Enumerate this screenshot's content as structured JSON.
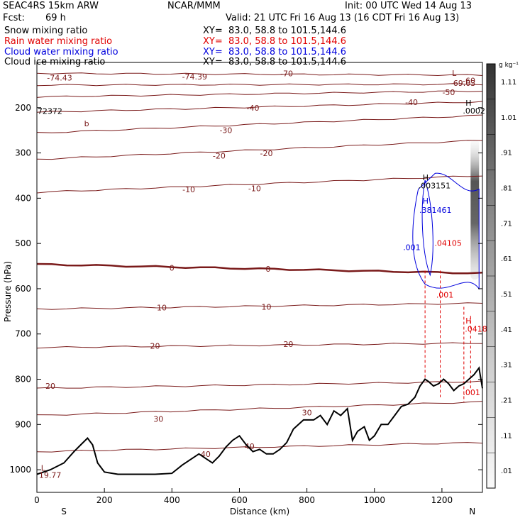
{
  "header": {
    "model": "SEAC4RS 15km ARW",
    "org": "NCAR/MMM",
    "init": "Init: 00 UTC Wed 14 Aug 13",
    "fcst_label": "Fcst:",
    "fcst_value": "69 h",
    "valid": "Valid: 21 UTC Fri 16 Aug 13 (16 CDT Fri 16 Aug 13)"
  },
  "fields": [
    {
      "name": "Snow mixing ratio",
      "xy": "XY=  83.0, 58.8 to 101.5,144.6",
      "color": "#000000"
    },
    {
      "name": "Rain water mixing ratio",
      "xy": "XY=  83.0, 58.8 to 101.5,144.6",
      "color": "#e00000"
    },
    {
      "name": "Cloud water mixing ratio",
      "xy": "XY=  83.0, 58.8 to 101.5,144.6",
      "color": "#0000dd"
    },
    {
      "name": "Cloud ice mixing ratio",
      "xy": "XY=  83.0, 58.8 to 101.5,144.6",
      "color": "#000000"
    }
  ],
  "chart_data": {
    "type": "line",
    "xlabel": "Distance (km)",
    "ylabel": "Pressure (hPa)",
    "xlim": [
      0,
      1320
    ],
    "ylim": [
      1050,
      100
    ],
    "x_ticks": [
      0,
      200,
      400,
      600,
      800,
      1000,
      1200
    ],
    "y_ticks": [
      200,
      300,
      400,
      500,
      600,
      700,
      800,
      900,
      1000
    ],
    "x_end_labels": [
      "S",
      "N"
    ],
    "isotherm_color": "#7a1a1a",
    "isotherms": [
      {
        "label": "-70",
        "left": 124,
        "right": 128,
        "lx": 740,
        "ly": 124
      },
      {
        "label": "-60",
        "left": 150,
        "right": 148,
        "lx": 1280,
        "ly": 140
      },
      {
        "label": "-50",
        "left": 176,
        "right": 163,
        "lx": 1220,
        "ly": 166
      },
      {
        "label": "-40",
        "left": 210,
        "right": 187,
        "lx": 640,
        "ly": 200
      },
      {
        "label": "-40",
        "left": 210,
        "right": 187,
        "lx": 1110,
        "ly": 188
      },
      {
        "label": "-30",
        "left": 256,
        "right": 217,
        "lx": 560,
        "ly": 250
      },
      {
        "label": "-20",
        "left": 314,
        "right": 272,
        "lx": 540,
        "ly": 306
      },
      {
        "label": "-20",
        "left": 314,
        "right": 272,
        "lx": 680,
        "ly": 301
      },
      {
        "label": "-10",
        "left": 387,
        "right": 350,
        "lx": 450,
        "ly": 381
      },
      {
        "label": "-10",
        "left": 387,
        "right": 350,
        "lx": 645,
        "ly": 378
      },
      {
        "label": "0",
        "left": 546,
        "right": 566,
        "lx": 400,
        "ly": 554,
        "bold": true
      },
      {
        "label": "0",
        "left": 546,
        "right": 566,
        "lx": 685,
        "ly": 556,
        "bold": true
      },
      {
        "label": "10",
        "left": 645,
        "right": 632,
        "lx": 370,
        "ly": 642
      },
      {
        "label": "10",
        "left": 645,
        "right": 632,
        "lx": 680,
        "ly": 640
      },
      {
        "label": "20",
        "left": 730,
        "right": 720,
        "lx": 350,
        "ly": 726
      },
      {
        "label": "20",
        "left": 730,
        "right": 720,
        "lx": 745,
        "ly": 722
      },
      {
        "label": "20",
        "left": 820,
        "right": 805,
        "lx": 40,
        "ly": 815
      },
      {
        "label": "30",
        "left": 880,
        "right": 850,
        "lx": 360,
        "ly": 888
      },
      {
        "label": "30",
        "left": 880,
        "right": 850,
        "lx": 800,
        "ly": 874
      },
      {
        "label": "40",
        "left": 960,
        "right": 940,
        "lx": 500,
        "ly": 965
      },
      {
        "label": "40",
        "left": 960,
        "right": 940,
        "lx": 630,
        "ly": 948
      }
    ],
    "terrain": [
      [
        0,
        1010
      ],
      [
        40,
        1000
      ],
      [
        80,
        985
      ],
      [
        110,
        960
      ],
      [
        130,
        945
      ],
      [
        150,
        930
      ],
      [
        165,
        945
      ],
      [
        180,
        985
      ],
      [
        200,
        1005
      ],
      [
        240,
        1010
      ],
      [
        350,
        1010
      ],
      [
        400,
        1008
      ],
      [
        430,
        990
      ],
      [
        460,
        975
      ],
      [
        480,
        965
      ],
      [
        500,
        975
      ],
      [
        520,
        985
      ],
      [
        540,
        970
      ],
      [
        560,
        950
      ],
      [
        580,
        935
      ],
      [
        600,
        925
      ],
      [
        620,
        945
      ],
      [
        640,
        960
      ],
      [
        660,
        955
      ],
      [
        680,
        965
      ],
      [
        700,
        965
      ],
      [
        720,
        955
      ],
      [
        740,
        940
      ],
      [
        760,
        910
      ],
      [
        790,
        890
      ],
      [
        820,
        890
      ],
      [
        840,
        880
      ],
      [
        860,
        900
      ],
      [
        880,
        870
      ],
      [
        900,
        880
      ],
      [
        920,
        865
      ],
      [
        935,
        935
      ],
      [
        950,
        915
      ],
      [
        970,
        905
      ],
      [
        985,
        935
      ],
      [
        1000,
        925
      ],
      [
        1020,
        900
      ],
      [
        1040,
        900
      ],
      [
        1060,
        880
      ],
      [
        1080,
        860
      ],
      [
        1100,
        855
      ],
      [
        1120,
        840
      ],
      [
        1135,
        815
      ],
      [
        1150,
        800
      ],
      [
        1160,
        805
      ],
      [
        1175,
        815
      ],
      [
        1190,
        810
      ],
      [
        1205,
        800
      ],
      [
        1220,
        810
      ],
      [
        1235,
        825
      ],
      [
        1250,
        815
      ],
      [
        1265,
        810
      ],
      [
        1280,
        800
      ],
      [
        1295,
        790
      ],
      [
        1310,
        775
      ],
      [
        1320,
        820
      ]
    ],
    "annotations": [
      {
        "text": "L",
        "x": 12,
        "y": 1002,
        "color": "#7a1a1a"
      },
      {
        "text": "19.77",
        "x": 6,
        "y": 1018,
        "color": "#7a1a1a"
      },
      {
        "text": "-74.43",
        "x": 30,
        "y": 140,
        "color": "#7a1a1a"
      },
      {
        "text": "-74.39",
        "x": 430,
        "y": 138,
        "color": "#7a1a1a"
      },
      {
        "text": "L",
        "x": 1230,
        "y": 130,
        "color": "#7a1a1a"
      },
      {
        "text": "-69.03",
        "x": 1225,
        "y": 152,
        "color": "#7a1a1a"
      },
      {
        "text": "H",
        "x": 1270,
        "y": 196,
        "color": "#000000"
      },
      {
        "text": ".0002",
        "x": 1262,
        "y": 213,
        "color": "#000000"
      },
      {
        "text": "72372",
        "x": 2,
        "y": 214,
        "color": "#000000"
      },
      {
        "text": "b",
        "x": 140,
        "y": 241,
        "color": "#7a1a1a"
      },
      {
        "text": "H",
        "x": 1143,
        "y": 360,
        "color": "#000000"
      },
      {
        "text": ".003151",
        "x": 1130,
        "y": 378,
        "color": "#000000"
      },
      {
        "text": "H",
        "x": 1143,
        "y": 412,
        "color": "#0000dd"
      },
      {
        "text": ".381461",
        "x": 1133,
        "y": 432,
        "color": "#0000dd"
      },
      {
        "text": ".001",
        "x": 1085,
        "y": 515,
        "color": "#0000dd"
      },
      {
        "text": ".04105",
        "x": 1178,
        "y": 505,
        "color": "#e00000"
      },
      {
        "text": ".001",
        "x": 1183,
        "y": 620,
        "color": "#e00000"
      },
      {
        "text": "H",
        "x": 1270,
        "y": 677,
        "color": "#e00000"
      },
      {
        "text": ".04180",
        "x": 1268,
        "y": 695,
        "color": "#e00000"
      },
      {
        "text": ".001",
        "x": 1262,
        "y": 835,
        "color": "#e00000"
      }
    ]
  },
  "colorbar": {
    "unit": "g kg⁻¹",
    "ticks": [
      "1.11",
      "1.01",
      ".91",
      ".81",
      ".71",
      ".61",
      ".51",
      ".41",
      ".31",
      ".21",
      ".11",
      ".01"
    ]
  }
}
